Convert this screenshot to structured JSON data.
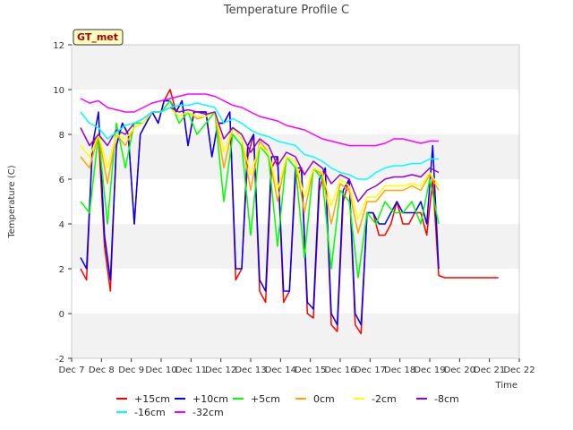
{
  "chart_data": {
    "type": "line",
    "title": "Temperature Profile C",
    "xlabel": "Time",
    "ylabel": "Temperature (C)",
    "badge": "GT_met",
    "xlim": [
      7,
      22
    ],
    "ylim": [
      -2,
      12
    ],
    "x_ticks": [
      7,
      8,
      9,
      10,
      11,
      12,
      13,
      14,
      15,
      16,
      17,
      18,
      19,
      20,
      21,
      22
    ],
    "x_tick_labels": [
      "Dec 7",
      "Dec 8",
      "Dec 9",
      "Dec 10",
      "Dec 11",
      "Dec 12",
      "Dec 13",
      "Dec 14",
      "Dec 15",
      "Dec 16",
      "Dec 17",
      "Dec 18",
      "Dec 19",
      "Dec 20",
      "Dec 21",
      "Dec 22"
    ],
    "y_ticks": [
      -2,
      0,
      2,
      4,
      6,
      8,
      10,
      12
    ],
    "grid": "horizontal bands",
    "legend_position": "bottom",
    "series": [
      {
        "name": "+15cm",
        "color": "#ff0000",
        "x": [
          7.3,
          7.5,
          7.7,
          7.9,
          8.1,
          8.3,
          8.5,
          8.7,
          8.9,
          9.1,
          9.3,
          9.5,
          9.7,
          9.9,
          10.1,
          10.3,
          10.5,
          10.7,
          10.9,
          11.1,
          11.3,
          11.5,
          11.7,
          11.9,
          12.1,
          12.3,
          12.5,
          12.7,
          12.9,
          13.1,
          13.3,
          13.5,
          13.7,
          13.9,
          14.1,
          14.3,
          14.5,
          14.7,
          14.9,
          15.1,
          15.3,
          15.5,
          15.7,
          15.9,
          16.1,
          16.3,
          16.5,
          16.7,
          16.9,
          17.1,
          17.3,
          17.5,
          17.7,
          17.9,
          18.1,
          18.3,
          18.5,
          18.7,
          18.9,
          19.1,
          19.3,
          19.5,
          19.7,
          19.9,
          20.1,
          20.3,
          20.5,
          20.7,
          20.9,
          21.1,
          21.3
        ],
        "y": [
          2.0,
          1.5,
          7.5,
          8.0,
          3.0,
          1.0,
          7.5,
          8.5,
          8.0,
          4.0,
          8.0,
          8.5,
          9.0,
          8.5,
          9.5,
          10.0,
          9.0,
          9.5,
          7.5,
          9.0,
          9.0,
          9.0,
          7.0,
          8.5,
          8.5,
          9.0,
          1.5,
          2.0,
          7.0,
          8.0,
          1.0,
          0.5,
          6.5,
          7.0,
          0.5,
          1.0,
          6.0,
          6.5,
          0.0,
          -0.2,
          5.5,
          6.5,
          -0.5,
          -0.8,
          5.0,
          6.0,
          -0.5,
          -0.9,
          4.5,
          4.5,
          3.5,
          3.5,
          4.0,
          5.0,
          4.0,
          4.0,
          4.5,
          4.5,
          3.5,
          6.0,
          1.7,
          1.6,
          1.6,
          1.6,
          1.6,
          1.6,
          1.6,
          1.6,
          1.6,
          1.6,
          1.6
        ]
      },
      {
        "name": "+10cm",
        "color": "#0000ff",
        "x": [
          7.3,
          7.5,
          7.7,
          7.9,
          8.1,
          8.3,
          8.5,
          8.7,
          8.9,
          9.1,
          9.3,
          9.5,
          9.7,
          9.9,
          10.1,
          10.3,
          10.5,
          10.7,
          10.9,
          11.1,
          11.3,
          11.5,
          11.7,
          11.9,
          12.1,
          12.3,
          12.5,
          12.7,
          12.9,
          13.1,
          13.3,
          13.5,
          13.7,
          13.9,
          14.1,
          14.3,
          14.5,
          14.7,
          14.9,
          15.1,
          15.3,
          15.5,
          15.7,
          15.9,
          16.1,
          16.3,
          16.5,
          16.7,
          16.9,
          17.1,
          17.3,
          17.5,
          17.7,
          17.9,
          18.1,
          18.3,
          18.5,
          18.7,
          18.9,
          19.1,
          19.3
        ],
        "y": [
          2.5,
          2.0,
          7.5,
          9.0,
          3.5,
          1.5,
          7.5,
          8.5,
          8.0,
          4.0,
          8.0,
          8.5,
          9.0,
          8.5,
          9.5,
          9.5,
          9.0,
          9.5,
          7.5,
          9.0,
          9.0,
          9.0,
          7.0,
          8.5,
          8.5,
          9.0,
          2.0,
          2.0,
          7.5,
          8.0,
          1.5,
          1.0,
          7.0,
          7.0,
          1.0,
          1.0,
          6.5,
          6.5,
          0.5,
          0.2,
          6.0,
          6.5,
          0.0,
          -0.5,
          5.5,
          6.0,
          0.0,
          -0.5,
          4.5,
          4.5,
          4.0,
          4.0,
          4.5,
          5.0,
          4.5,
          4.5,
          4.5,
          5.0,
          4.0,
          7.5,
          2.0
        ]
      },
      {
        "name": "+5cm",
        "color": "#00ff00",
        "x": [
          7.3,
          7.6,
          7.9,
          8.2,
          8.5,
          8.8,
          9.1,
          9.4,
          9.7,
          10.0,
          10.3,
          10.6,
          10.9,
          11.2,
          11.5,
          11.8,
          12.1,
          12.4,
          12.7,
          13.0,
          13.3,
          13.6,
          13.9,
          14.2,
          14.5,
          14.8,
          15.1,
          15.4,
          15.7,
          16.0,
          16.3,
          16.6,
          16.9,
          17.2,
          17.5,
          17.8,
          18.1,
          18.4,
          18.7,
          19.0,
          19.3
        ],
        "y": [
          5.0,
          4.5,
          8.0,
          4.0,
          8.5,
          6.5,
          8.5,
          8.5,
          9.0,
          9.0,
          9.5,
          8.5,
          9.0,
          8.0,
          8.5,
          9.0,
          5.0,
          8.0,
          7.5,
          3.5,
          7.5,
          7.0,
          3.0,
          7.0,
          6.5,
          2.5,
          6.5,
          6.0,
          2.0,
          5.5,
          5.0,
          1.6,
          4.5,
          4.0,
          5.0,
          4.5,
          4.5,
          5.0,
          4.0,
          6.0,
          4.0
        ]
      },
      {
        "name": "0cm",
        "color": "#ffa500",
        "x": [
          7.3,
          7.6,
          7.9,
          8.2,
          8.5,
          8.8,
          9.1,
          9.4,
          9.7,
          10.0,
          10.3,
          10.6,
          10.9,
          11.2,
          11.5,
          11.8,
          12.1,
          12.4,
          12.7,
          13.0,
          13.3,
          13.6,
          13.9,
          14.2,
          14.5,
          14.8,
          15.1,
          15.4,
          15.7,
          16.0,
          16.3,
          16.6,
          16.9,
          17.2,
          17.5,
          17.8,
          18.1,
          18.4,
          18.7,
          19.0,
          19.3
        ],
        "y": [
          7.0,
          6.5,
          8.0,
          5.8,
          8.0,
          7.5,
          8.3,
          8.5,
          9.0,
          9.0,
          9.2,
          8.8,
          9.0,
          8.7,
          8.8,
          9.0,
          6.5,
          8.3,
          7.8,
          5.5,
          7.7,
          7.2,
          5.0,
          7.0,
          6.8,
          4.5,
          6.5,
          6.2,
          4.0,
          5.8,
          5.5,
          3.6,
          5.0,
          5.0,
          5.5,
          5.5,
          5.5,
          5.7,
          5.5,
          6.2,
          5.5
        ]
      },
      {
        "name": "-2cm",
        "color": "#ffff00",
        "x": [
          7.3,
          7.6,
          7.9,
          8.2,
          8.5,
          8.8,
          9.1,
          9.4,
          9.7,
          10.0,
          10.3,
          10.6,
          10.9,
          11.2,
          11.5,
          11.8,
          12.1,
          12.4,
          12.7,
          13.0,
          13.3,
          13.6,
          13.9,
          14.2,
          14.5,
          14.8,
          15.1,
          15.4,
          15.7,
          16.0,
          16.3,
          16.6,
          16.9,
          17.2,
          17.5,
          17.8,
          18.1,
          18.4,
          18.7,
          19.0,
          19.3
        ],
        "y": [
          7.5,
          7.0,
          8.0,
          6.5,
          8.0,
          7.8,
          8.3,
          8.5,
          9.0,
          9.0,
          9.2,
          8.8,
          9.0,
          8.8,
          8.8,
          9.0,
          7.2,
          8.3,
          7.8,
          6.2,
          7.5,
          7.2,
          5.5,
          7.0,
          6.8,
          5.2,
          6.5,
          6.3,
          4.8,
          6.0,
          5.7,
          4.2,
          5.2,
          5.2,
          5.7,
          5.7,
          5.7,
          5.8,
          5.7,
          6.3,
          5.7
        ]
      },
      {
        "name": "-8cm",
        "color": "#9900cc",
        "x": [
          7.3,
          7.6,
          7.9,
          8.2,
          8.5,
          8.8,
          9.1,
          9.4,
          9.7,
          10.0,
          10.3,
          10.6,
          10.9,
          11.2,
          11.5,
          11.8,
          12.1,
          12.4,
          12.7,
          13.0,
          13.3,
          13.6,
          13.9,
          14.2,
          14.5,
          14.8,
          15.1,
          15.4,
          15.7,
          16.0,
          16.3,
          16.6,
          16.9,
          17.2,
          17.5,
          17.8,
          18.1,
          18.4,
          18.7,
          19.0,
          19.3
        ],
        "y": [
          8.3,
          7.5,
          8.0,
          7.5,
          8.2,
          8.0,
          8.5,
          8.7,
          9.0,
          9.0,
          9.2,
          9.0,
          9.1,
          9.0,
          8.9,
          9.0,
          7.8,
          8.3,
          8.0,
          7.2,
          7.8,
          7.5,
          6.6,
          7.2,
          7.0,
          6.2,
          6.8,
          6.5,
          5.8,
          6.2,
          6.0,
          5.0,
          5.5,
          5.7,
          6.0,
          6.1,
          6.1,
          6.2,
          6.1,
          6.5,
          6.3
        ]
      },
      {
        "name": "-16cm",
        "color": "#00ffff",
        "x": [
          7.3,
          7.6,
          7.9,
          8.2,
          8.5,
          8.8,
          9.1,
          9.4,
          9.7,
          10.0,
          10.3,
          10.6,
          10.9,
          11.2,
          11.5,
          11.8,
          12.1,
          12.4,
          12.7,
          13.0,
          13.3,
          13.6,
          13.9,
          14.2,
          14.5,
          14.8,
          15.1,
          15.4,
          15.7,
          16.0,
          16.3,
          16.6,
          16.9,
          17.2,
          17.5,
          17.8,
          18.1,
          18.4,
          18.7,
          19.0,
          19.3
        ],
        "y": [
          9.0,
          8.5,
          8.3,
          7.8,
          8.1,
          8.4,
          8.5,
          8.7,
          9.0,
          9.0,
          9.2,
          9.3,
          9.3,
          9.4,
          9.3,
          9.2,
          8.5,
          8.7,
          8.5,
          8.2,
          8.0,
          7.9,
          7.7,
          7.6,
          7.5,
          7.1,
          7.0,
          6.8,
          6.5,
          6.3,
          6.2,
          6.0,
          6.0,
          6.3,
          6.5,
          6.6,
          6.6,
          6.7,
          6.7,
          6.9,
          6.9
        ]
      },
      {
        "name": "-32cm",
        "color": "#ff00ff",
        "x": [
          7.3,
          7.6,
          7.9,
          8.2,
          8.5,
          8.8,
          9.1,
          9.4,
          9.7,
          10.0,
          10.3,
          10.6,
          10.9,
          11.2,
          11.5,
          11.8,
          12.1,
          12.4,
          12.7,
          13.0,
          13.3,
          13.6,
          13.9,
          14.2,
          14.5,
          14.8,
          15.1,
          15.4,
          15.7,
          16.0,
          16.3,
          16.6,
          16.9,
          17.2,
          17.5,
          17.8,
          18.1,
          18.4,
          18.7,
          19.0,
          19.3
        ],
        "y": [
          9.6,
          9.4,
          9.5,
          9.2,
          9.1,
          9.0,
          9.0,
          9.2,
          9.4,
          9.5,
          9.6,
          9.7,
          9.8,
          9.8,
          9.8,
          9.7,
          9.5,
          9.3,
          9.2,
          9.0,
          8.8,
          8.7,
          8.6,
          8.4,
          8.3,
          8.2,
          8.0,
          7.8,
          7.7,
          7.6,
          7.5,
          7.5,
          7.5,
          7.5,
          7.6,
          7.8,
          7.8,
          7.7,
          7.6,
          7.7,
          7.7
        ]
      }
    ]
  }
}
